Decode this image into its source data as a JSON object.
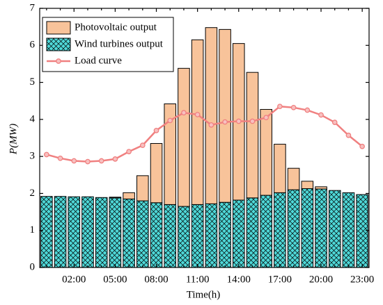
{
  "chart_data": {
    "type": "bar",
    "stacked": true,
    "x_label": "Time(h)",
    "y_label": "P(MW)",
    "categories": [
      null,
      null,
      "02:00",
      null,
      null,
      "05:00",
      null,
      null,
      "08:00",
      null,
      null,
      "11:00",
      null,
      null,
      "14:00",
      null,
      null,
      "17:00",
      null,
      null,
      "20:00",
      null,
      null,
      "23:00"
    ],
    "series": [
      {
        "name": "Photovoltaic output",
        "color": "#f8c39a",
        "values": [
          0,
          0,
          0,
          0,
          0,
          0.02,
          0.17,
          0.68,
          1.6,
          2.72,
          3.73,
          4.45,
          4.76,
          4.67,
          4.23,
          3.39,
          2.32,
          1.31,
          0.58,
          0.2,
          0.06,
          0,
          0,
          0
        ]
      },
      {
        "name": "Wind turbines output",
        "color": "#4fd9d9",
        "hatch": true,
        "values": [
          1.92,
          1.92,
          1.91,
          1.91,
          1.89,
          1.88,
          1.85,
          1.8,
          1.75,
          1.7,
          1.65,
          1.7,
          1.72,
          1.76,
          1.82,
          1.88,
          1.95,
          2.02,
          2.1,
          2.13,
          2.12,
          2.08,
          2.02,
          1.97
        ]
      },
      {
        "name": "Load curve",
        "type": "line",
        "color": "#f08080",
        "values": [
          3.05,
          2.95,
          2.88,
          2.86,
          2.88,
          2.93,
          3.13,
          3.3,
          3.7,
          3.97,
          4.18,
          4.13,
          3.85,
          3.93,
          3.95,
          3.95,
          4.05,
          4.35,
          4.32,
          4.25,
          4.12,
          3.92,
          3.57,
          3.27
        ]
      }
    ],
    "ylim": [
      0,
      7
    ],
    "yticks": [
      0,
      1,
      2,
      3,
      4,
      5,
      6,
      7
    ],
    "legend": "upper left"
  }
}
